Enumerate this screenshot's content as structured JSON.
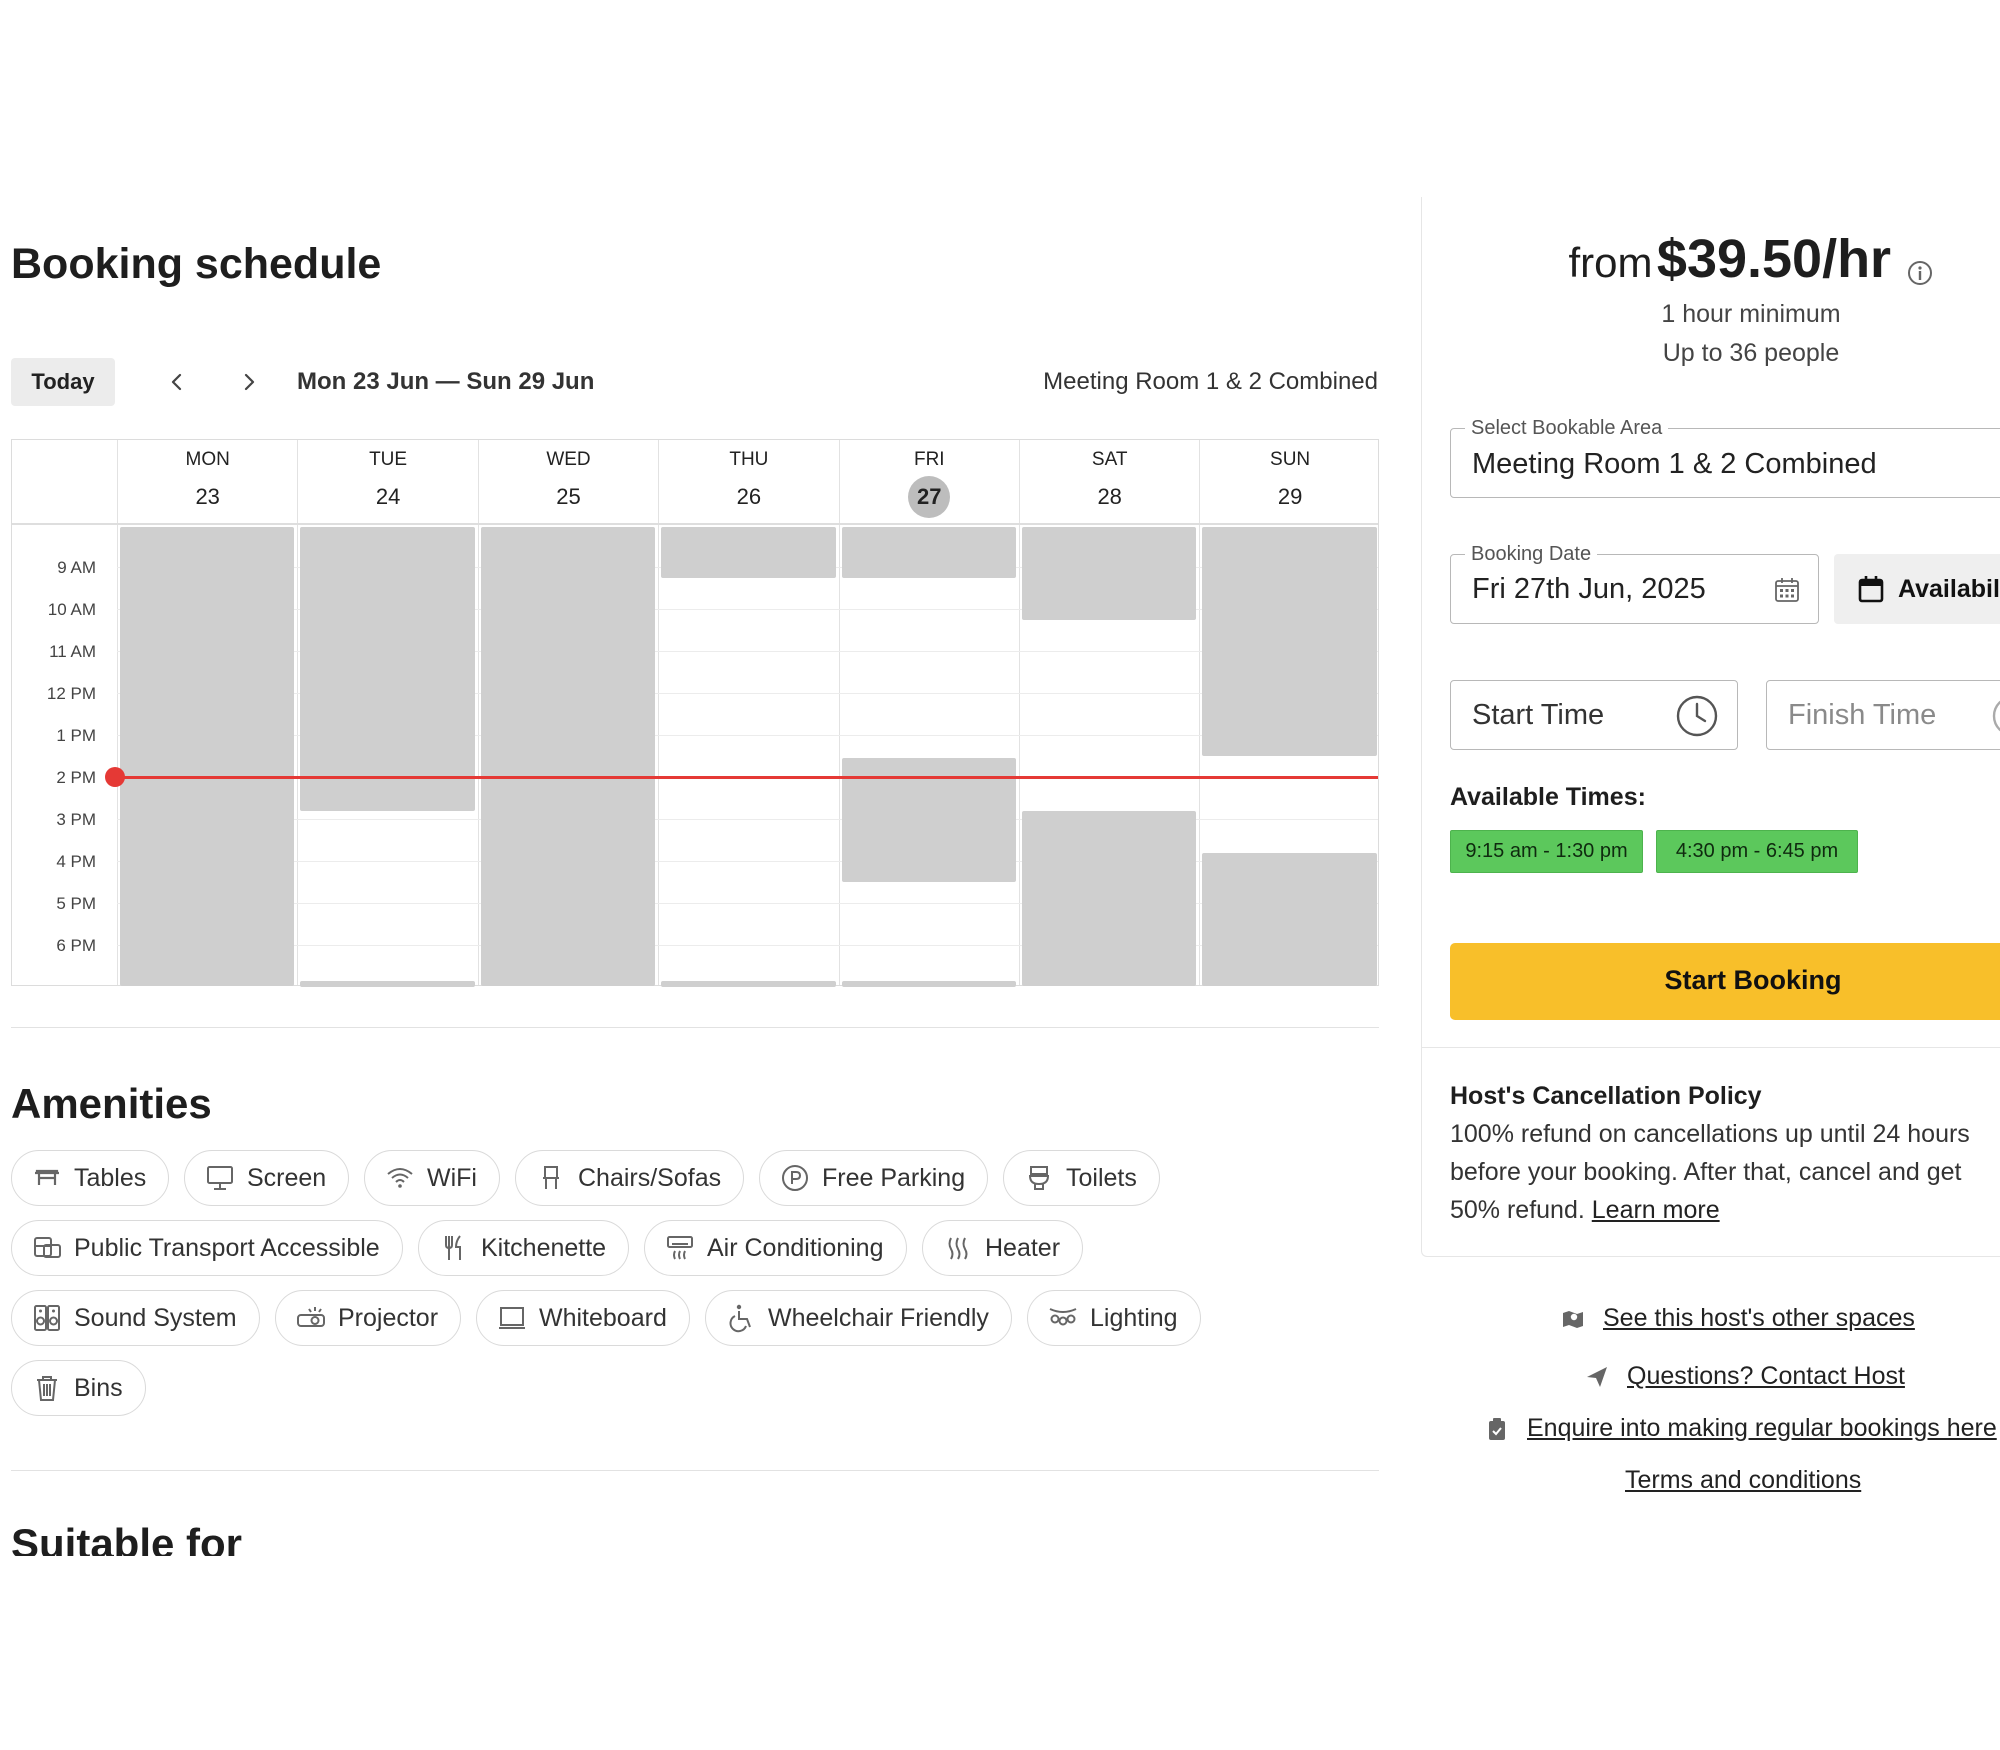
{
  "schedule": {
    "title": "Booking schedule",
    "today_label": "Today",
    "date_range": "Mon 23 Jun — Sun 29 Jun",
    "room": "Meeting Room 1 & 2 Combined",
    "days": [
      {
        "name": "MON",
        "num": "23"
      },
      {
        "name": "TUE",
        "num": "24"
      },
      {
        "name": "WED",
        "num": "25"
      },
      {
        "name": "THU",
        "num": "26"
      },
      {
        "name": "FRI",
        "num": "27",
        "today": true
      },
      {
        "name": "SAT",
        "num": "28"
      },
      {
        "name": "SUN",
        "num": "29"
      }
    ],
    "hours": [
      "9 AM",
      "10 AM",
      "11 AM",
      "12 PM",
      "1 PM",
      "2 PM",
      "3 PM",
      "4 PM",
      "5 PM",
      "6 PM"
    ],
    "view_start_hour": 8,
    "current_time_hour": 14.0,
    "unavailable_blocks": [
      {
        "day": 0,
        "start": 8.0,
        "end": 19.0
      },
      {
        "day": 1,
        "start": 8.0,
        "end": 14.8
      },
      {
        "day": 1,
        "start": 18.8,
        "end": 19.0
      },
      {
        "day": 2,
        "start": 8.0,
        "end": 19.0
      },
      {
        "day": 3,
        "start": 8.0,
        "end": 9.25
      },
      {
        "day": 3,
        "start": 18.8,
        "end": 19.0
      },
      {
        "day": 4,
        "start": 8.0,
        "end": 9.25
      },
      {
        "day": 4,
        "start": 13.5,
        "end": 16.5
      },
      {
        "day": 4,
        "start": 18.8,
        "end": 19.0
      },
      {
        "day": 5,
        "start": 8.0,
        "end": 10.25
      },
      {
        "day": 5,
        "start": 14.75,
        "end": 19.0
      },
      {
        "day": 6,
        "start": 8.0,
        "end": 13.5
      },
      {
        "day": 6,
        "start": 15.75,
        "end": 19.0
      }
    ]
  },
  "amenities": {
    "title": "Amenities",
    "items": [
      {
        "label": "Tables",
        "icon": "table-icon"
      },
      {
        "label": "Screen",
        "icon": "screen-icon"
      },
      {
        "label": "WiFi",
        "icon": "wifi-icon"
      },
      {
        "label": "Chairs/Sofas",
        "icon": "chair-icon"
      },
      {
        "label": "Free Parking",
        "icon": "parking-icon"
      },
      {
        "label": "Toilets",
        "icon": "toilet-icon"
      },
      {
        "label": "Public Transport Accessible",
        "icon": "transport-icon"
      },
      {
        "label": "Kitchenette",
        "icon": "kitchen-icon"
      },
      {
        "label": "Air Conditioning",
        "icon": "air-conditioning-icon"
      },
      {
        "label": "Heater",
        "icon": "heater-icon"
      },
      {
        "label": "Sound System",
        "icon": "speaker-icon"
      },
      {
        "label": "Projector",
        "icon": "projector-icon"
      },
      {
        "label": "Whiteboard",
        "icon": "whiteboard-icon"
      },
      {
        "label": "Wheelchair Friendly",
        "icon": "wheelchair-icon"
      },
      {
        "label": "Lighting",
        "icon": "lighting-icon"
      },
      {
        "label": "Bins",
        "icon": "bin-icon"
      }
    ]
  },
  "suitable_title": "Suitable for",
  "pricing": {
    "from_label": "from",
    "price": "$39.50/hr",
    "minimum": "1 hour minimum",
    "capacity": "Up to 36 people"
  },
  "form": {
    "area_legend": "Select Bookable Area",
    "area_value": "Meeting Room 1 & 2 Combined",
    "date_legend": "Booking Date",
    "date_value": "Fri 27th Jun, 2025",
    "availability_label": "Availability",
    "start_placeholder": "Start Time",
    "finish_placeholder": "Finish Time",
    "available_title": "Available Times:",
    "slots": [
      "9:15 am - 1:30 pm",
      "4:30 pm - 6:45 pm"
    ],
    "start_booking": "Start Booking"
  },
  "cancellation": {
    "title": "Host's Cancellation Policy",
    "line1": "100% refund on cancellations up until 24 hours",
    "line2": "before your booking. After that, cancel and get",
    "line3": "50% refund. ",
    "learn_more": "Learn more"
  },
  "links": {
    "other_spaces": "See this host's other spaces",
    "contact_host": "Questions? Contact Host",
    "regular_bookings": "Enquire into making regular bookings here",
    "terms": "Terms and conditions"
  },
  "colors": {
    "accent_yellow": "#f8bf2a",
    "slot_green": "#5cc85c",
    "now_red": "#e53935",
    "busy_grey": "#cfcfcf"
  }
}
